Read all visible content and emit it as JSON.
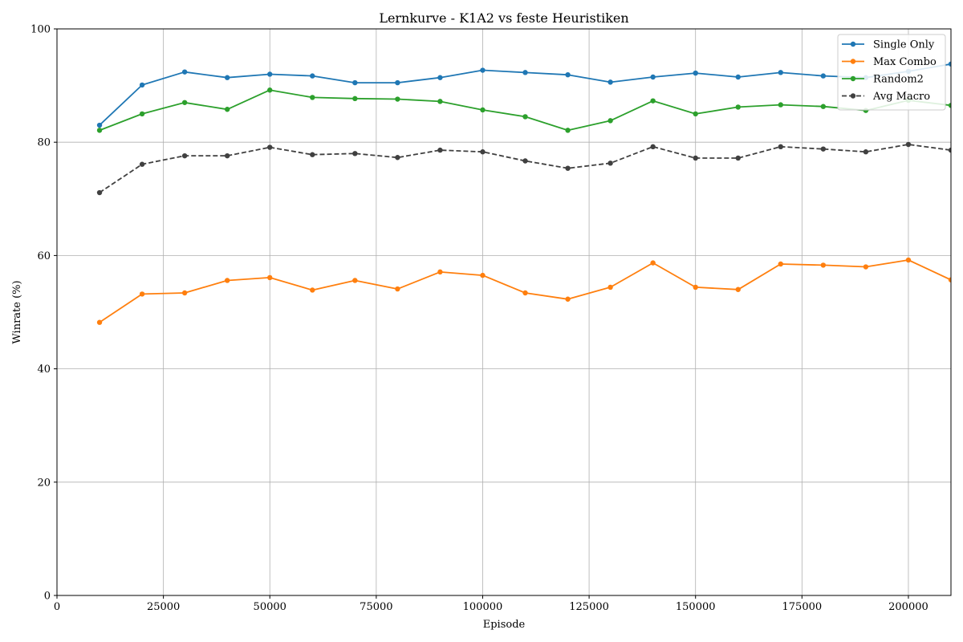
{
  "chart_data": {
    "type": "line",
    "title": "Lernkurve - K1A2 vs feste Heuristiken",
    "xlabel": "Episode",
    "ylabel": "Winrate (%)",
    "xlim": [
      0,
      210000
    ],
    "ylim": [
      0,
      100
    ],
    "xticks": [
      0,
      25000,
      50000,
      75000,
      100000,
      125000,
      150000,
      175000,
      200000
    ],
    "yticks": [
      0,
      20,
      40,
      60,
      80,
      100
    ],
    "grid": true,
    "legend_position": "top-right",
    "x": [
      10000,
      20000,
      30000,
      40000,
      50000,
      60000,
      70000,
      80000,
      90000,
      100000,
      110000,
      120000,
      130000,
      140000,
      150000,
      160000,
      170000,
      180000,
      190000,
      200000,
      210000
    ],
    "series": [
      {
        "name": "Single Only",
        "color": "#1f77b4",
        "dashed": false,
        "values": [
          83.0,
          90.1,
          92.4,
          91.4,
          92.0,
          91.7,
          90.5,
          90.5,
          91.4,
          92.7,
          92.3,
          91.9,
          90.6,
          91.5,
          92.2,
          91.5,
          92.3,
          91.7,
          91.4,
          92.5,
          93.8
        ]
      },
      {
        "name": "Max Combo",
        "color": "#ff7f0e",
        "dashed": false,
        "values": [
          48.2,
          53.2,
          53.4,
          55.6,
          56.1,
          53.9,
          55.6,
          54.1,
          57.1,
          56.5,
          53.4,
          52.3,
          54.4,
          58.7,
          54.4,
          54.0,
          58.5,
          58.3,
          58.0,
          59.2,
          55.7
        ]
      },
      {
        "name": "Random2",
        "color": "#2ca02c",
        "dashed": false,
        "values": [
          82.1,
          85.0,
          87.0,
          85.8,
          89.2,
          87.9,
          87.7,
          87.6,
          87.2,
          85.7,
          84.5,
          82.1,
          83.8,
          87.3,
          85.0,
          86.2,
          86.6,
          86.3,
          85.6,
          87.4,
          86.5
        ]
      },
      {
        "name": "Avg Macro",
        "color": "#404040",
        "dashed": true,
        "values": [
          71.1,
          76.1,
          77.6,
          77.6,
          79.1,
          77.8,
          78.0,
          77.3,
          78.6,
          78.3,
          76.7,
          75.4,
          76.3,
          79.2,
          77.2,
          77.2,
          79.2,
          78.8,
          78.3,
          79.6,
          78.6
        ]
      }
    ]
  }
}
